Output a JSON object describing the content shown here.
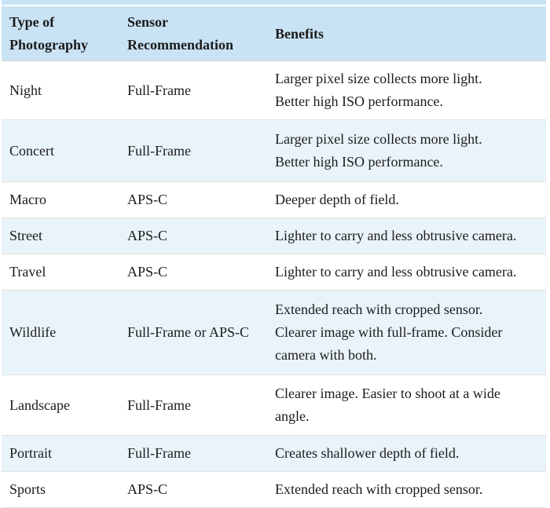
{
  "colors": {
    "header_bg": "#c9e3f5",
    "stripe_bg": "#e9f3fa",
    "row_border": "#e2e2e2",
    "header_border": "#d4d4d4",
    "text": "#1b1b1b",
    "top_divider": "#fafcfe"
  },
  "table": {
    "columns": [
      {
        "id": "type",
        "label": "Type of\nPhotography"
      },
      {
        "id": "sensor",
        "label": "Sensor\nRecommendation"
      },
      {
        "id": "benefits",
        "label": "Benefits"
      }
    ],
    "rows": [
      {
        "type": "Night",
        "sensor": "Full-Frame",
        "benefits": "Larger pixel size collects more light.\nBetter high ISO performance."
      },
      {
        "type": "Concert",
        "sensor": "Full-Frame",
        "benefits": "Larger pixel size collects more light.\nBetter high ISO performance."
      },
      {
        "type": "Macro",
        "sensor": "APS-C",
        "benefits": "Deeper depth of field."
      },
      {
        "type": "Street",
        "sensor": "APS-C",
        "benefits": "Lighter to carry and less obtrusive camera."
      },
      {
        "type": "Travel",
        "sensor": "APS-C",
        "benefits": "Lighter to carry and less obtrusive camera."
      },
      {
        "type": "Wildlife",
        "sensor": "Full-Frame or APS-C",
        "benefits": "Extended reach with cropped sensor.\nClearer image with full-frame. Consider\ncamera with both."
      },
      {
        "type": "Landscape",
        "sensor": "Full-Frame",
        "benefits": "Clearer image. Easier to shoot at a wide\nangle."
      },
      {
        "type": "Portrait",
        "sensor": "Full-Frame",
        "benefits": "Creates shallower depth of field."
      },
      {
        "type": "Sports",
        "sensor": "APS-C",
        "benefits": "Extended reach with cropped sensor."
      }
    ]
  }
}
